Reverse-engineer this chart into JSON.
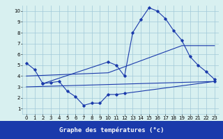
{
  "line1_x": [
    0,
    1,
    2,
    10,
    11,
    12,
    13,
    14,
    15,
    16,
    17,
    18,
    19,
    20,
    21,
    22,
    23
  ],
  "line1_y": [
    5.2,
    4.6,
    3.3,
    5.3,
    5.0,
    4.0,
    8.0,
    9.2,
    10.3,
    10.0,
    9.3,
    8.2,
    7.3,
    5.8,
    5.0,
    4.4,
    3.7
  ],
  "line2_x": [
    2,
    3,
    4,
    5,
    6,
    7,
    8,
    9,
    10,
    11,
    12,
    23
  ],
  "line2_y": [
    3.3,
    3.4,
    3.5,
    2.6,
    2.1,
    1.3,
    1.5,
    1.5,
    2.3,
    2.3,
    2.4,
    3.5
  ],
  "line3_x": [
    0,
    23
  ],
  "line3_y": [
    3.0,
    3.5
  ],
  "line4_x": [
    0,
    10,
    19,
    23
  ],
  "line4_y": [
    4.0,
    4.3,
    6.8,
    6.8
  ],
  "line_color": "#1a3aab",
  "bg_color": "#d8f0f0",
  "grid_color": "#a0c8d8",
  "xlabel": "Graphe des températures (°c)",
  "xlim": [
    -0.5,
    23.5
  ],
  "ylim": [
    0.5,
    10.5
  ],
  "xticks": [
    0,
    1,
    2,
    3,
    4,
    5,
    6,
    7,
    8,
    9,
    10,
    11,
    12,
    13,
    14,
    15,
    16,
    17,
    18,
    19,
    20,
    21,
    22,
    23
  ],
  "yticks": [
    1,
    2,
    3,
    4,
    5,
    6,
    7,
    8,
    9,
    10
  ],
  "xlabel_fontsize": 6.5,
  "tick_fontsize": 5.0
}
